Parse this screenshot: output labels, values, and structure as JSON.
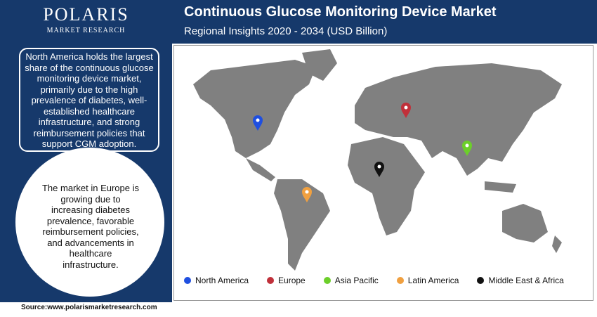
{
  "logo": {
    "name": "POLARIS",
    "tagline": "MARKET RESEARCH"
  },
  "header": {
    "title": "Continuous Glucose Monitoring Device Market",
    "subtitle": "Regional Insights 2020 - 2034 (USD Billion)"
  },
  "notes": [
    "North America holds the largest share of the continuous glucose monitoring device market, primarily due to the high prevalence of diabetes, well-established healthcare infrastructure,  and strong reimbursement policies that support CGM adoption.",
    "The market in Europe is growing due to increasing diabetes prevalence, favorable reimbursement policies, and advancements in healthcare infrastructure."
  ],
  "legend": [
    {
      "name": "North America",
      "color": "#1f4fe0"
    },
    {
      "name": "Europe",
      "color": "#c0303a"
    },
    {
      "name": "Asia Pacific",
      "color": "#6ccf2a"
    },
    {
      "name": "Latin America",
      "color": "#f0a040"
    },
    {
      "name": "Middle East & Africa",
      "color": "#111111"
    }
  ],
  "source": "Source:www.polarismarketresearch.com"
}
